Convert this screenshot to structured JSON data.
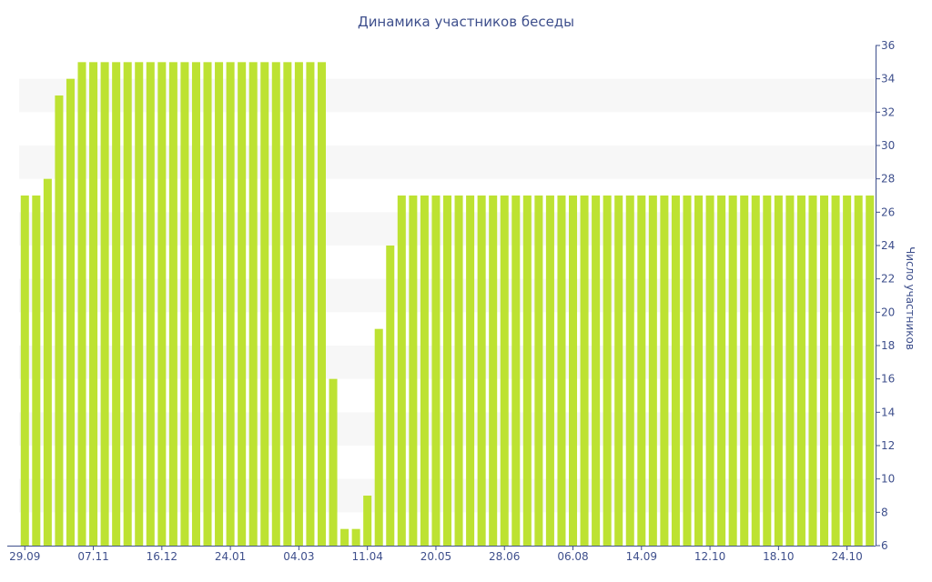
{
  "chart_data": {
    "type": "bar",
    "title": "Динамика участников беседы",
    "xlabel": "",
    "ylabel": "Число участников",
    "ylim": [
      6,
      36
    ],
    "yticks": [
      6,
      8,
      10,
      12,
      14,
      16,
      18,
      20,
      22,
      24,
      26,
      28,
      30,
      32,
      34,
      36
    ],
    "y_axis_position": "right",
    "grid": "alternating horizontal bands",
    "bar_color": "#bde232",
    "band_color": "#f7f7f7",
    "text_color": "#3e4f8c",
    "x_tick_labels": [
      "29.09",
      "07.11",
      "16.12",
      "24.01",
      "04.03",
      "11.04",
      "20.05",
      "28.06",
      "06.08",
      "14.09",
      "12.10",
      "18.10",
      "24.10"
    ],
    "x_tick_label_bar_index": [
      0,
      6,
      12,
      18,
      24,
      30,
      36,
      42,
      48,
      54,
      60,
      66,
      72
    ],
    "values": [
      27,
      27,
      28,
      33,
      34,
      35,
      35,
      35,
      35,
      35,
      35,
      35,
      35,
      35,
      35,
      35,
      35,
      35,
      35,
      35,
      35,
      35,
      35,
      35,
      35,
      35,
      35,
      16,
      7,
      7,
      9,
      19,
      24,
      27,
      27,
      27,
      27,
      27,
      27,
      27,
      27,
      27,
      27,
      27,
      27,
      27,
      27,
      27,
      27,
      27,
      27,
      27,
      27,
      27,
      27,
      27,
      27,
      27,
      27,
      27,
      27,
      27,
      27,
      27,
      27,
      27,
      27,
      27,
      27,
      27,
      27,
      27,
      27,
      27,
      27
    ]
  }
}
